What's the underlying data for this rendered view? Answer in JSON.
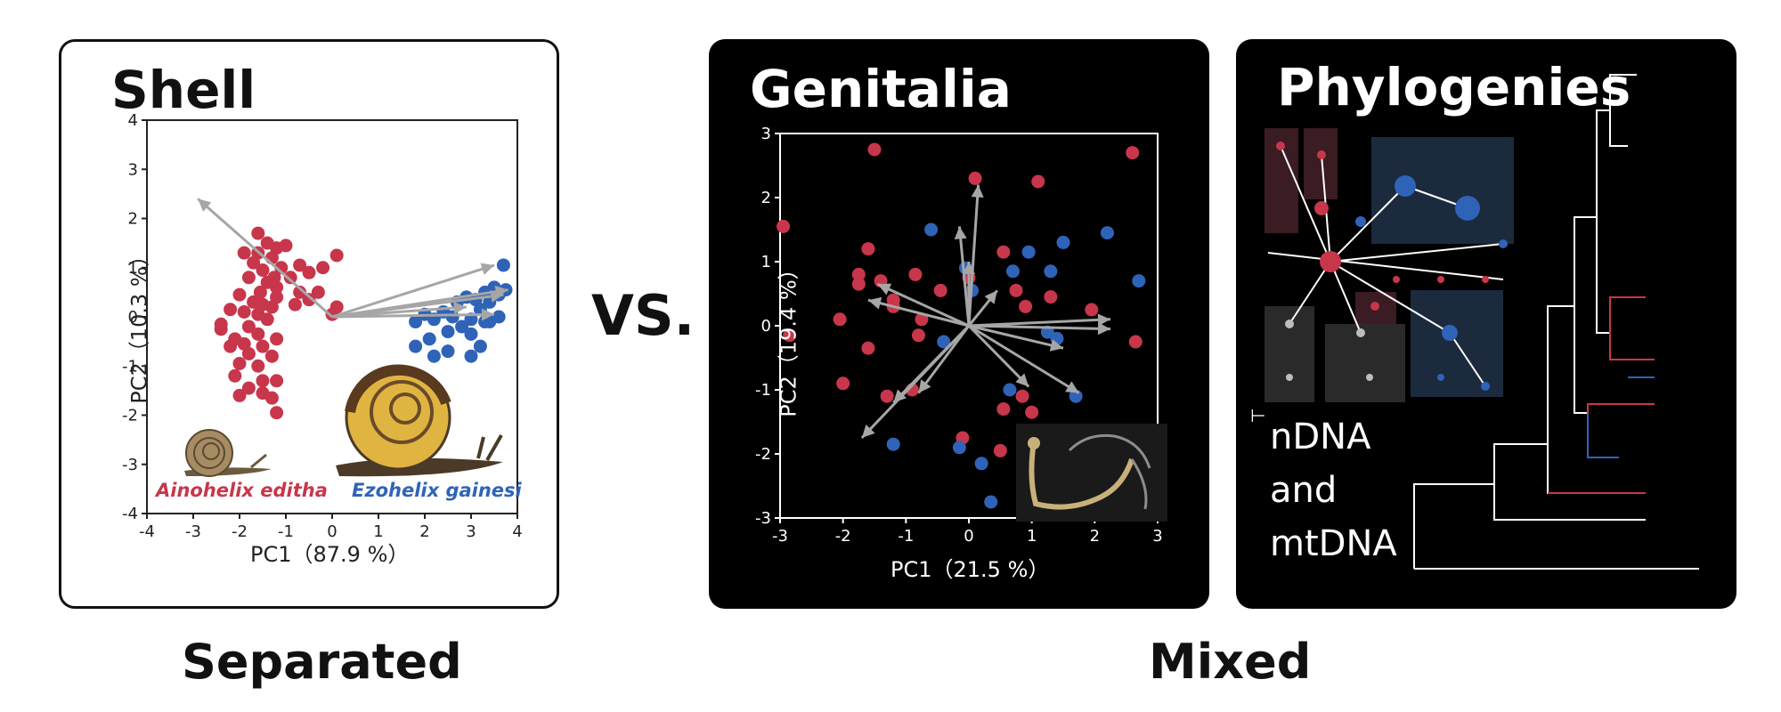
{
  "vs_label": "VS.",
  "bottom_labels": {
    "left": "Separated",
    "right": "Mixed"
  },
  "panels": {
    "shell": {
      "title": "Shell",
      "species_a": "Ainohelix editha",
      "species_b": "Ezohelix gainesi"
    },
    "genitalia": {
      "title": "Genitalia"
    },
    "phylogenies": {
      "title": "Phylogenies",
      "data_lines": [
        "nDNA",
        "and",
        "mtDNA"
      ],
      "support_marker": "*"
    }
  },
  "colors": {
    "red": "#c8364b",
    "blue": "#2f63b8",
    "arrow": "#a6a6a6",
    "node_gray": "#bdbdbd"
  },
  "icons": [
    "snail-small-icon",
    "snail-large-icon",
    "genitalia-photo-icon"
  ],
  "chart_data": [
    {
      "type": "scatter",
      "title": "Shell",
      "xlabel": "PC1（87.9 %）",
      "ylabel": "PC2（10.3 %）",
      "xlim": [
        -4,
        4
      ],
      "ylim": [
        -4,
        4
      ],
      "xticks": [
        "-4",
        "-3",
        "-2",
        "-1",
        "0",
        "1",
        "2",
        "3",
        "4"
      ],
      "yticks": [
        "4",
        "3",
        "2",
        "1",
        "0",
        "-1",
        "-2",
        "-3",
        "-4"
      ],
      "series": [
        {
          "name": "Ainohelix editha",
          "color": "#c8364b",
          "points": [
            [
              -1.6,
              1.7
            ],
            [
              -1.4,
              1.5
            ],
            [
              -1.2,
              1.4
            ],
            [
              -1.0,
              1.45
            ],
            [
              -1.9,
              1.3
            ],
            [
              -1.6,
              1.3
            ],
            [
              -1.3,
              1.2
            ],
            [
              -1.7,
              1.1
            ],
            [
              -1.1,
              1.0
            ],
            [
              -0.7,
              1.05
            ],
            [
              0.1,
              1.25
            ],
            [
              -1.5,
              0.95
            ],
            [
              -1.25,
              0.8
            ],
            [
              -1.8,
              0.8
            ],
            [
              -0.5,
              0.9
            ],
            [
              -0.9,
              0.8
            ],
            [
              -1.4,
              0.7
            ],
            [
              -1.2,
              0.6
            ],
            [
              -0.2,
              1.0
            ],
            [
              -0.7,
              0.5
            ],
            [
              -1.55,
              0.5
            ],
            [
              -0.3,
              0.5
            ],
            [
              -2.0,
              0.45
            ],
            [
              -1.2,
              0.4
            ],
            [
              -0.5,
              0.35
            ],
            [
              0.1,
              0.2
            ],
            [
              -1.7,
              0.3
            ],
            [
              -1.5,
              0.25
            ],
            [
              -1.3,
              0.2
            ],
            [
              -0.8,
              0.25
            ],
            [
              0.0,
              0.05
            ],
            [
              -2.2,
              0.15
            ],
            [
              -1.9,
              0.1
            ],
            [
              -1.6,
              0.05
            ],
            [
              -1.4,
              -0.05
            ],
            [
              -2.4,
              -0.15
            ],
            [
              -1.8,
              -0.2
            ],
            [
              -2.4,
              -0.25
            ],
            [
              -1.6,
              -0.35
            ],
            [
              -1.2,
              -0.45
            ],
            [
              -2.1,
              -0.45
            ],
            [
              -1.9,
              -0.55
            ],
            [
              -1.5,
              -0.6
            ],
            [
              -2.2,
              -0.6
            ],
            [
              -1.8,
              -0.75
            ],
            [
              -1.3,
              -0.8
            ],
            [
              -2.0,
              -0.95
            ],
            [
              -1.6,
              -1.0
            ],
            [
              -2.1,
              -1.2
            ],
            [
              -1.5,
              -1.3
            ],
            [
              -1.2,
              -1.3
            ],
            [
              -1.8,
              -1.45
            ],
            [
              -1.5,
              -1.55
            ],
            [
              -1.3,
              -1.65
            ],
            [
              -2.0,
              -1.6
            ],
            [
              -1.2,
              -1.95
            ]
          ]
        },
        {
          "name": "Ezohelix gainesi",
          "color": "#2f63b8",
          "points": [
            [
              3.7,
              1.05
            ],
            [
              3.5,
              0.6
            ],
            [
              3.3,
              0.5
            ],
            [
              3.75,
              0.55
            ],
            [
              3.6,
              0.45
            ],
            [
              3.1,
              0.35
            ],
            [
              2.9,
              0.4
            ],
            [
              3.4,
              0.3
            ],
            [
              2.7,
              0.3
            ],
            [
              3.2,
              0.15
            ],
            [
              2.4,
              0.1
            ],
            [
              2.0,
              0.05
            ],
            [
              2.6,
              0.0
            ],
            [
              3.0,
              -0.05
            ],
            [
              3.3,
              -0.1
            ],
            [
              2.2,
              -0.05
            ],
            [
              1.8,
              -0.1
            ],
            [
              2.8,
              -0.2
            ],
            [
              3.0,
              -0.35
            ],
            [
              2.5,
              -0.3
            ],
            [
              2.1,
              -0.45
            ],
            [
              3.2,
              -0.6
            ],
            [
              3.0,
              -0.8
            ],
            [
              2.5,
              -0.7
            ],
            [
              2.2,
              -0.8
            ],
            [
              1.8,
              -0.6
            ],
            [
              3.4,
              -0.1
            ],
            [
              3.6,
              0.0
            ]
          ]
        }
      ],
      "loadings": [
        [
          -2.9,
          2.4
        ],
        [
          3.5,
          1.05
        ],
        [
          3.8,
          0.55
        ],
        [
          3.7,
          0.45
        ],
        [
          3.5,
          0.05
        ],
        [
          2.9,
          0.2
        ]
      ]
    },
    {
      "type": "scatter",
      "title": "Genitalia",
      "xlabel": "PC1（21.5 %）",
      "ylabel": "PC2（19.4 %）",
      "xlim": [
        -3,
        3
      ],
      "ylim": [
        -3,
        3
      ],
      "xticks": [
        "-3",
        "-2",
        "-1",
        "0",
        "1",
        "2",
        "3"
      ],
      "yticks": [
        "3",
        "2",
        "1",
        "0",
        "-1",
        "-2",
        "-3"
      ],
      "series": [
        {
          "name": "Ainohelix editha",
          "color": "#c8364b",
          "points": [
            [
              -1.5,
              2.75
            ],
            [
              2.6,
              2.7
            ],
            [
              0.1,
              2.3
            ],
            [
              1.1,
              2.25
            ],
            [
              -2.95,
              1.55
            ],
            [
              0.55,
              1.15
            ],
            [
              -1.6,
              1.2
            ],
            [
              -1.75,
              0.8
            ],
            [
              -1.4,
              0.7
            ],
            [
              -0.85,
              0.8
            ],
            [
              -1.75,
              0.65
            ],
            [
              0.0,
              0.75
            ],
            [
              0.75,
              0.55
            ],
            [
              -0.45,
              0.55
            ],
            [
              -1.2,
              0.4
            ],
            [
              1.3,
              0.45
            ],
            [
              -1.2,
              0.3
            ],
            [
              -2.05,
              0.1
            ],
            [
              -0.75,
              0.1
            ],
            [
              0.9,
              0.3
            ],
            [
              1.95,
              0.25
            ],
            [
              -2.85,
              -0.15
            ],
            [
              -0.8,
              -0.15
            ],
            [
              -1.6,
              -0.35
            ],
            [
              -2.0,
              -0.9
            ],
            [
              -1.3,
              -1.1
            ],
            [
              -0.9,
              -1.0
            ],
            [
              0.55,
              -1.3
            ],
            [
              1.0,
              -1.35
            ],
            [
              2.65,
              -0.25
            ],
            [
              -0.1,
              -1.75
            ],
            [
              0.5,
              -1.95
            ],
            [
              0.85,
              -1.1
            ]
          ]
        },
        {
          "name": "Ezohelix gainesi",
          "color": "#2f63b8",
          "points": [
            [
              -0.6,
              1.5
            ],
            [
              0.95,
              1.15
            ],
            [
              1.5,
              1.3
            ],
            [
              2.2,
              1.45
            ],
            [
              0.7,
              0.85
            ],
            [
              1.3,
              0.85
            ],
            [
              -0.05,
              0.9
            ],
            [
              0.05,
              0.55
            ],
            [
              2.7,
              0.7
            ],
            [
              1.25,
              -0.1
            ],
            [
              1.4,
              -0.2
            ],
            [
              -0.4,
              -0.25
            ],
            [
              0.65,
              -1.0
            ],
            [
              1.7,
              -1.1
            ],
            [
              -1.2,
              -1.85
            ],
            [
              -0.15,
              -1.9
            ],
            [
              0.2,
              -2.15
            ],
            [
              0.35,
              -2.75
            ]
          ]
        }
      ],
      "loadings": [
        [
          -1.45,
          0.65
        ],
        [
          -0.15,
          1.55
        ],
        [
          0.15,
          2.2
        ],
        [
          0.0,
          1.0
        ],
        [
          0.45,
          0.55
        ],
        [
          1.5,
          -0.35
        ],
        [
          2.25,
          -0.05
        ],
        [
          2.25,
          0.1
        ],
        [
          0.95,
          -0.95
        ],
        [
          1.75,
          -1.05
        ],
        [
          -0.8,
          -1.05
        ],
        [
          -1.7,
          -1.75
        ],
        [
          -1.2,
          -1.2
        ],
        [
          -1.6,
          0.4
        ]
      ]
    }
  ]
}
